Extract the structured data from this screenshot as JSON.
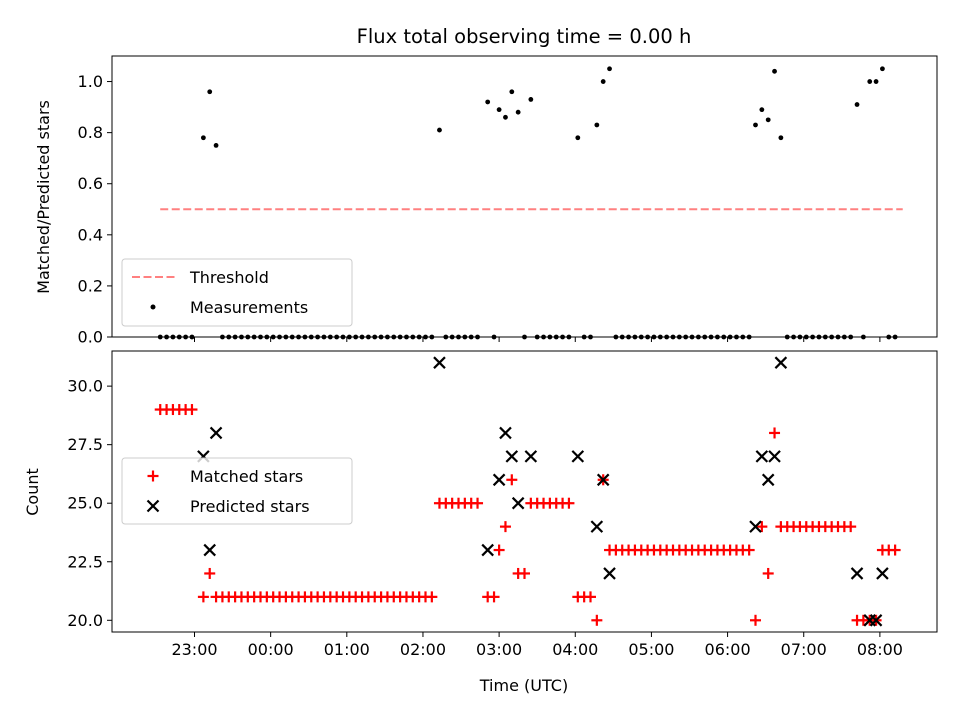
{
  "chart_data": [
    {
      "type": "scatter",
      "title": "Flux total observing time = 0.00 h",
      "ylabel": "Matched/Predicted stars",
      "ylim": [
        0,
        1.1
      ],
      "yticks": [
        0.0,
        0.2,
        0.4,
        0.6,
        0.8,
        1.0
      ],
      "ytick_labels": [
        "0.0",
        "0.2",
        "0.4",
        "0.6",
        "0.8",
        "1.0"
      ],
      "legend_position": "lower left",
      "threshold": {
        "name": "Threshold",
        "value": 0.5,
        "x_start": "22:33",
        "x_end": "08:18",
        "color": "#ff8080",
        "style": "dashed"
      },
      "series": [
        {
          "name": "Measurements",
          "color": "#000000",
          "marker": "dot",
          "points": [
            [
              "22:33",
              0
            ],
            [
              "22:38",
              0
            ],
            [
              "22:43",
              0
            ],
            [
              "22:48",
              0
            ],
            [
              "22:53",
              0
            ],
            [
              "22:58",
              0
            ],
            [
              "23:07",
              0.78
            ],
            [
              "23:12",
              0.96
            ],
            [
              "23:17",
              0.75
            ],
            [
              "23:22",
              0
            ],
            [
              "23:27",
              0
            ],
            [
              "23:32",
              0
            ],
            [
              "23:37",
              0
            ],
            [
              "23:42",
              0
            ],
            [
              "23:47",
              0
            ],
            [
              "23:52",
              0
            ],
            [
              "23:57",
              0
            ],
            [
              "00:02",
              0
            ],
            [
              "00:07",
              0
            ],
            [
              "00:12",
              0
            ],
            [
              "00:17",
              0
            ],
            [
              "00:22",
              0
            ],
            [
              "00:27",
              0
            ],
            [
              "00:32",
              0
            ],
            [
              "00:37",
              0
            ],
            [
              "00:42",
              0
            ],
            [
              "00:47",
              0
            ],
            [
              "00:52",
              0
            ],
            [
              "00:57",
              0
            ],
            [
              "01:02",
              0
            ],
            [
              "01:07",
              0
            ],
            [
              "01:12",
              0
            ],
            [
              "01:17",
              0
            ],
            [
              "01:22",
              0
            ],
            [
              "01:27",
              0
            ],
            [
              "01:32",
              0
            ],
            [
              "01:37",
              0
            ],
            [
              "01:42",
              0
            ],
            [
              "01:47",
              0
            ],
            [
              "01:52",
              0
            ],
            [
              "01:57",
              0
            ],
            [
              "02:02",
              0
            ],
            [
              "02:07",
              0
            ],
            [
              "02:13",
              0.81
            ],
            [
              "02:18",
              0
            ],
            [
              "02:23",
              0
            ],
            [
              "02:28",
              0
            ],
            [
              "02:33",
              0
            ],
            [
              "02:38",
              0
            ],
            [
              "02:43",
              0
            ],
            [
              "02:51",
              0.92
            ],
            [
              "02:56",
              0
            ],
            [
              "03:00",
              0.89
            ],
            [
              "03:05",
              0.86
            ],
            [
              "03:10",
              0.96
            ],
            [
              "03:15",
              0.88
            ],
            [
              "03:20",
              0
            ],
            [
              "03:25",
              0.93
            ],
            [
              "03:30",
              0
            ],
            [
              "03:35",
              0
            ],
            [
              "03:40",
              0
            ],
            [
              "03:45",
              0
            ],
            [
              "03:50",
              0
            ],
            [
              "03:55",
              0
            ],
            [
              "04:02",
              0.78
            ],
            [
              "04:07",
              0
            ],
            [
              "04:12",
              0
            ],
            [
              "04:17",
              0.83
            ],
            [
              "04:22",
              1.0
            ],
            [
              "04:27",
              1.05
            ],
            [
              "04:32",
              0
            ],
            [
              "04:37",
              0
            ],
            [
              "04:42",
              0
            ],
            [
              "04:47",
              0
            ],
            [
              "04:52",
              0
            ],
            [
              "04:57",
              0
            ],
            [
              "05:02",
              0
            ],
            [
              "05:07",
              0
            ],
            [
              "05:12",
              0
            ],
            [
              "05:17",
              0
            ],
            [
              "05:22",
              0
            ],
            [
              "05:27",
              0
            ],
            [
              "05:32",
              0
            ],
            [
              "05:37",
              0
            ],
            [
              "05:42",
              0
            ],
            [
              "05:47",
              0
            ],
            [
              "05:52",
              0
            ],
            [
              "05:57",
              0
            ],
            [
              "06:02",
              0
            ],
            [
              "06:07",
              0
            ],
            [
              "06:12",
              0
            ],
            [
              "06:17",
              0
            ],
            [
              "06:22",
              0.83
            ],
            [
              "06:27",
              0.89
            ],
            [
              "06:32",
              0.85
            ],
            [
              "06:37",
              1.04
            ],
            [
              "06:42",
              0.78
            ],
            [
              "06:47",
              0
            ],
            [
              "06:52",
              0
            ],
            [
              "06:57",
              0
            ],
            [
              "07:02",
              0
            ],
            [
              "07:07",
              0
            ],
            [
              "07:12",
              0
            ],
            [
              "07:17",
              0
            ],
            [
              "07:22",
              0
            ],
            [
              "07:27",
              0
            ],
            [
              "07:32",
              0
            ],
            [
              "07:37",
              0
            ],
            [
              "07:42",
              0.91
            ],
            [
              "07:47",
              0
            ],
            [
              "07:52",
              1.0
            ],
            [
              "07:57",
              1.0
            ],
            [
              "08:02",
              1.05
            ],
            [
              "08:07",
              0
            ],
            [
              "08:12",
              0
            ]
          ]
        }
      ]
    },
    {
      "type": "scatter",
      "xlabel": "Time (UTC)",
      "ylabel": "Count",
      "ylim": [
        19.5,
        31.5
      ],
      "yticks": [
        20.0,
        22.5,
        25.0,
        27.5,
        30.0
      ],
      "ytick_labels": [
        "20.0",
        "22.5",
        "25.0",
        "27.5",
        "30.0"
      ],
      "xlim": [
        "21:55",
        "08:45"
      ],
      "xticks": [
        "23:00",
        "00:00",
        "01:00",
        "02:00",
        "03:00",
        "04:00",
        "05:00",
        "06:00",
        "07:00",
        "08:00"
      ],
      "legend_position": "center left",
      "series": [
        {
          "name": "Matched stars",
          "color": "#ff0000",
          "marker": "plus",
          "points": [
            [
              "22:33",
              29
            ],
            [
              "22:38",
              29
            ],
            [
              "22:43",
              29
            ],
            [
              "22:48",
              29
            ],
            [
              "22:53",
              29
            ],
            [
              "22:58",
              29
            ],
            [
              "23:07",
              21
            ],
            [
              "23:12",
              22
            ],
            [
              "23:17",
              21
            ],
            [
              "23:22",
              21
            ],
            [
              "23:27",
              21
            ],
            [
              "23:32",
              21
            ],
            [
              "23:37",
              21
            ],
            [
              "23:42",
              21
            ],
            [
              "23:47",
              21
            ],
            [
              "23:52",
              21
            ],
            [
              "23:57",
              21
            ],
            [
              "00:02",
              21
            ],
            [
              "00:07",
              21
            ],
            [
              "00:12",
              21
            ],
            [
              "00:17",
              21
            ],
            [
              "00:22",
              21
            ],
            [
              "00:27",
              21
            ],
            [
              "00:32",
              21
            ],
            [
              "00:37",
              21
            ],
            [
              "00:42",
              21
            ],
            [
              "00:47",
              21
            ],
            [
              "00:52",
              21
            ],
            [
              "00:57",
              21
            ],
            [
              "01:02",
              21
            ],
            [
              "01:07",
              21
            ],
            [
              "01:12",
              21
            ],
            [
              "01:17",
              21
            ],
            [
              "01:22",
              21
            ],
            [
              "01:27",
              21
            ],
            [
              "01:32",
              21
            ],
            [
              "01:37",
              21
            ],
            [
              "01:42",
              21
            ],
            [
              "01:47",
              21
            ],
            [
              "01:52",
              21
            ],
            [
              "01:57",
              21
            ],
            [
              "02:02",
              21
            ],
            [
              "02:07",
              21
            ],
            [
              "02:13",
              25
            ],
            [
              "02:18",
              25
            ],
            [
              "02:23",
              25
            ],
            [
              "02:28",
              25
            ],
            [
              "02:33",
              25
            ],
            [
              "02:38",
              25
            ],
            [
              "02:43",
              25
            ],
            [
              "02:51",
              21
            ],
            [
              "02:56",
              21
            ],
            [
              "03:00",
              23
            ],
            [
              "03:05",
              24
            ],
            [
              "03:10",
              26
            ],
            [
              "03:15",
              22
            ],
            [
              "03:20",
              22
            ],
            [
              "03:25",
              25
            ],
            [
              "03:30",
              25
            ],
            [
              "03:35",
              25
            ],
            [
              "03:40",
              25
            ],
            [
              "03:45",
              25
            ],
            [
              "03:50",
              25
            ],
            [
              "03:55",
              25
            ],
            [
              "04:02",
              21
            ],
            [
              "04:07",
              21
            ],
            [
              "04:12",
              21
            ],
            [
              "04:17",
              20
            ],
            [
              "04:22",
              26
            ],
            [
              "04:27",
              23
            ],
            [
              "04:32",
              23
            ],
            [
              "04:37",
              23
            ],
            [
              "04:42",
              23
            ],
            [
              "04:47",
              23
            ],
            [
              "04:52",
              23
            ],
            [
              "04:57",
              23
            ],
            [
              "05:02",
              23
            ],
            [
              "05:07",
              23
            ],
            [
              "05:12",
              23
            ],
            [
              "05:17",
              23
            ],
            [
              "05:22",
              23
            ],
            [
              "05:27",
              23
            ],
            [
              "05:32",
              23
            ],
            [
              "05:37",
              23
            ],
            [
              "05:42",
              23
            ],
            [
              "05:47",
              23
            ],
            [
              "05:52",
              23
            ],
            [
              "05:57",
              23
            ],
            [
              "06:02",
              23
            ],
            [
              "06:07",
              23
            ],
            [
              "06:12",
              23
            ],
            [
              "06:17",
              23
            ],
            [
              "06:22",
              20
            ],
            [
              "06:27",
              24
            ],
            [
              "06:32",
              22
            ],
            [
              "06:37",
              28
            ],
            [
              "06:42",
              24
            ],
            [
              "06:47",
              24
            ],
            [
              "06:52",
              24
            ],
            [
              "06:57",
              24
            ],
            [
              "07:02",
              24
            ],
            [
              "07:07",
              24
            ],
            [
              "07:12",
              24
            ],
            [
              "07:17",
              24
            ],
            [
              "07:22",
              24
            ],
            [
              "07:27",
              24
            ],
            [
              "07:32",
              24
            ],
            [
              "07:37",
              24
            ],
            [
              "07:42",
              20
            ],
            [
              "07:47",
              20
            ],
            [
              "07:52",
              20
            ],
            [
              "07:57",
              20
            ],
            [
              "08:02",
              23
            ],
            [
              "08:07",
              23
            ],
            [
              "08:12",
              23
            ]
          ]
        },
        {
          "name": "Predicted stars",
          "color": "#000000",
          "marker": "x",
          "points": [
            [
              "23:07",
              27
            ],
            [
              "23:12",
              23
            ],
            [
              "23:17",
              28
            ],
            [
              "02:13",
              31
            ],
            [
              "02:51",
              23
            ],
            [
              "03:00",
              26
            ],
            [
              "03:05",
              28
            ],
            [
              "03:10",
              27
            ],
            [
              "03:15",
              25
            ],
            [
              "03:25",
              27
            ],
            [
              "04:02",
              27
            ],
            [
              "04:17",
              24
            ],
            [
              "04:22",
              26
            ],
            [
              "04:27",
              22
            ],
            [
              "06:22",
              24
            ],
            [
              "06:27",
              27
            ],
            [
              "06:32",
              26
            ],
            [
              "06:37",
              27
            ],
            [
              "06:42",
              31
            ],
            [
              "07:42",
              22
            ],
            [
              "07:52",
              20
            ],
            [
              "07:57",
              20
            ],
            [
              "08:02",
              22
            ]
          ]
        }
      ]
    }
  ]
}
